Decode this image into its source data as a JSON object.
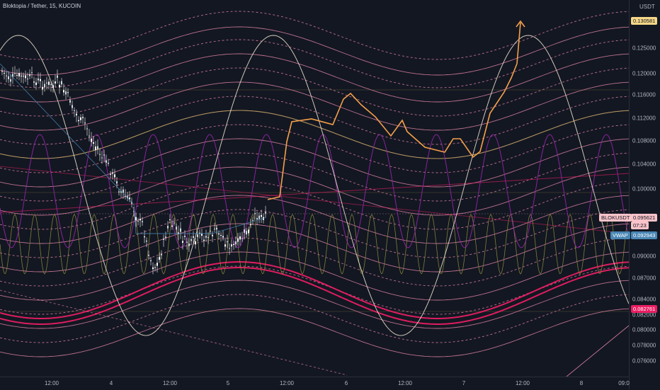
{
  "symbol": {
    "title": "Bloktopia / Tether, 15, KUCOIN"
  },
  "price_axis": {
    "currency": "USDT",
    "ticks": [
      "0.125000",
      "0.120000",
      "0.116000",
      "0.112000",
      "0.108000",
      "0.104000",
      "0.100000",
      "0.090000",
      "0.087000",
      "0.084000",
      "0.082000",
      "0.080000",
      "0.078000",
      "0.076000"
    ],
    "current_price": {
      "value": "0.130581",
      "color": "#f5d787"
    },
    "last_price": {
      "symbol": "BLOKUSDT",
      "value": "0.095621",
      "countdown": "07:23",
      "color": "#f8c3c9"
    },
    "vwap": {
      "label": "VWAP",
      "value": "0.092943",
      "color": "#4a87b5"
    },
    "low_level": {
      "value": "0.082761",
      "color": "#e91e63"
    }
  },
  "time_axis": {
    "ticks": [
      "12:00",
      "4",
      "12:00",
      "5",
      "12:00",
      "6",
      "12:00",
      "7",
      "12:00",
      "8",
      "09:0"
    ]
  },
  "colors": {
    "background": "#131722",
    "up_candle": "#ffffff",
    "down_candle": "#ffffff",
    "projection": "#f5a04a",
    "sine_white": "#f0e6d2",
    "sine_purple": "#9c27b0",
    "sine_olive": "#8a8a3a",
    "band_pink": "#f48fb1",
    "band_magenta": "#e91e63"
  }
}
